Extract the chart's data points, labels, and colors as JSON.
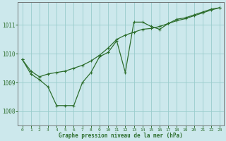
{
  "bg_color": "#cce8ec",
  "grid_color": "#99cccc",
  "line_color": "#2d6e2d",
  "marker_color": "#2d6e2d",
  "xlabel": "Graphe pression niveau de la mer (hPa)",
  "xlim": [
    -0.5,
    23.5
  ],
  "ylim": [
    1007.5,
    1011.8
  ],
  "yticks": [
    1008,
    1009,
    1010,
    1011
  ],
  "xticks": [
    0,
    1,
    2,
    3,
    4,
    5,
    6,
    7,
    8,
    9,
    10,
    11,
    12,
    13,
    14,
    15,
    16,
    17,
    18,
    19,
    20,
    21,
    22,
    23
  ],
  "series1_x": [
    0,
    1,
    2,
    3,
    4,
    5,
    6,
    7,
    8,
    9,
    10,
    11,
    12,
    13,
    14,
    15,
    16,
    17,
    18,
    19,
    20,
    21,
    22,
    23
  ],
  "series1_y": [
    1009.8,
    1009.3,
    1009.1,
    1008.85,
    1008.2,
    1008.2,
    1008.2,
    1009.0,
    1009.35,
    1009.9,
    1010.05,
    1010.45,
    1009.35,
    1011.1,
    1011.1,
    1010.95,
    1010.85,
    1011.05,
    1011.2,
    1011.25,
    1011.35,
    1011.45,
    1011.55,
    1011.6
  ],
  "series2_x": [
    0,
    1,
    2,
    3,
    4,
    5,
    6,
    7,
    8,
    9,
    10,
    11,
    12,
    13,
    14,
    15,
    16,
    17,
    18,
    19,
    20,
    21,
    22,
    23
  ],
  "series2_y": [
    1009.8,
    1009.4,
    1009.2,
    1009.3,
    1009.35,
    1009.4,
    1009.5,
    1009.6,
    1009.75,
    1009.95,
    1010.2,
    1010.5,
    1010.65,
    1010.75,
    1010.85,
    1010.88,
    1010.95,
    1011.05,
    1011.15,
    1011.22,
    1011.32,
    1011.42,
    1011.52,
    1011.6
  ]
}
